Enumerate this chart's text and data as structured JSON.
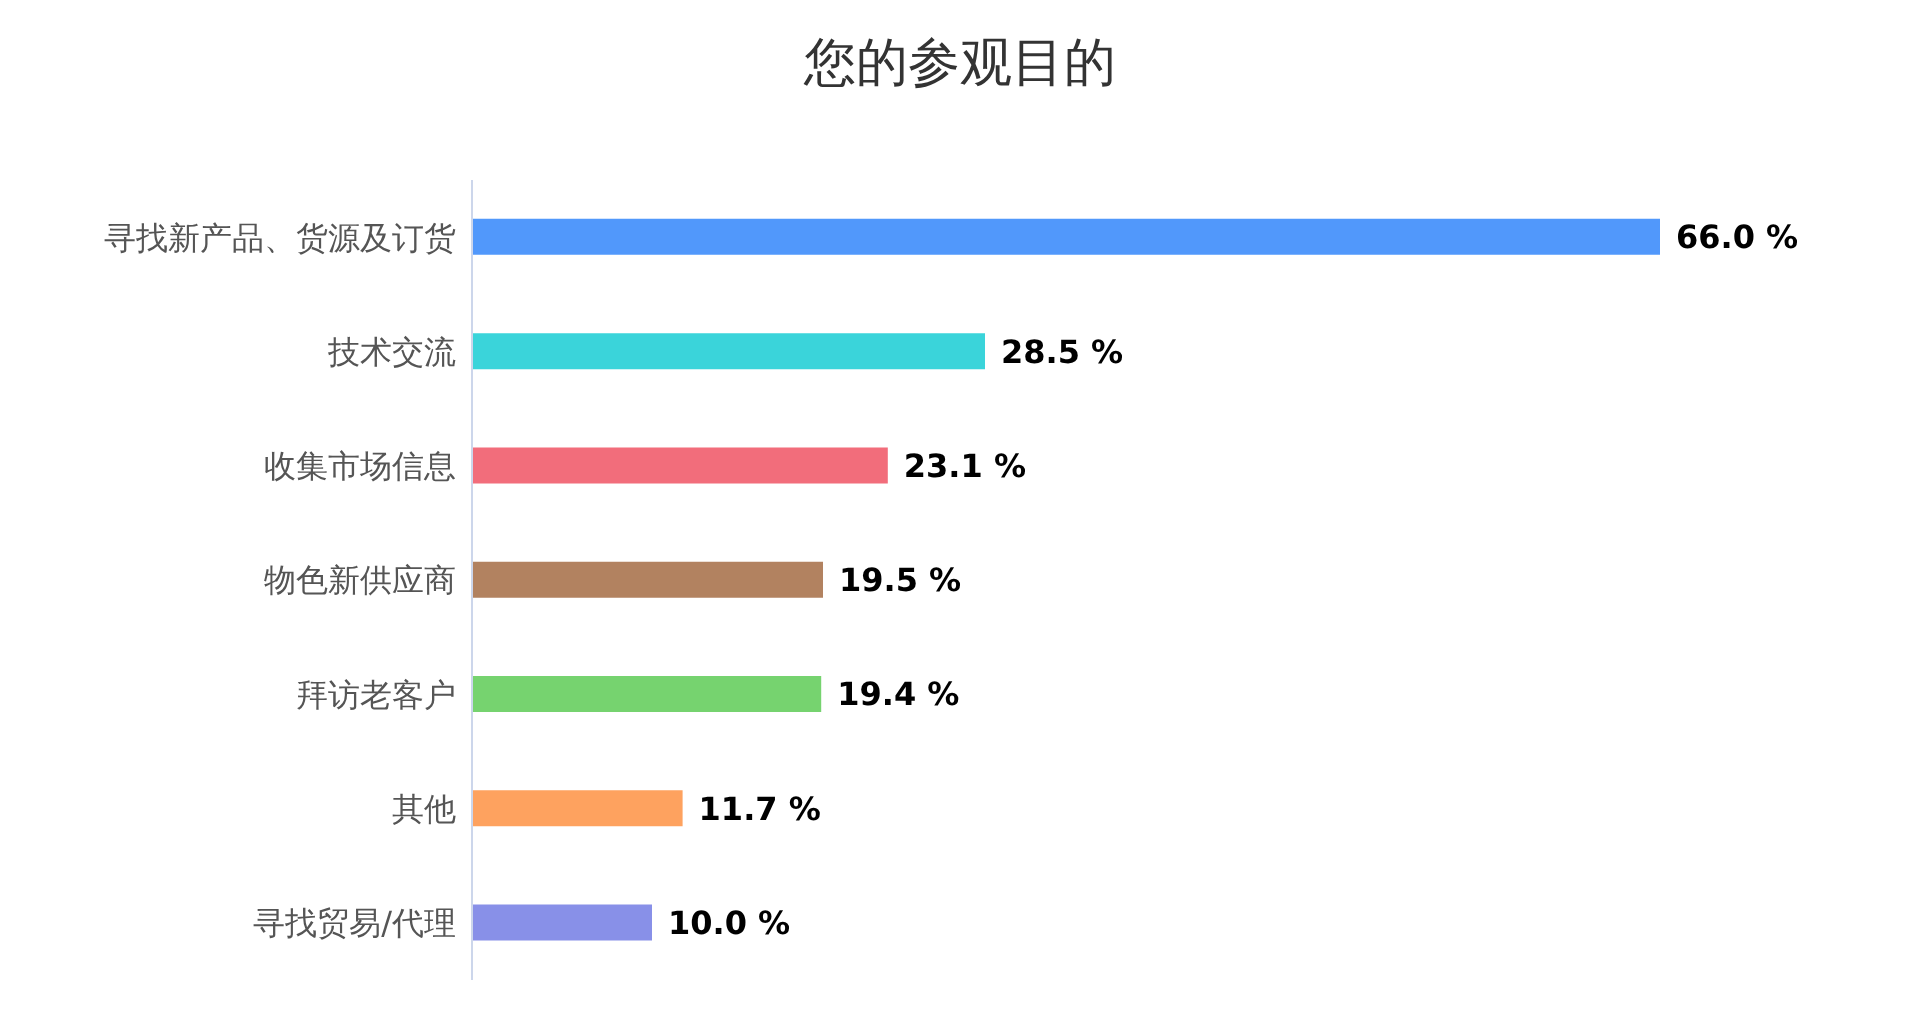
{
  "chart_data": {
    "type": "bar",
    "orientation": "horizontal",
    "title": "您的参观目的",
    "categories": [
      "寻找新产品、货源及订货",
      "技术交流",
      "收集市场信息",
      "物色新供应商",
      "拜访老客户",
      "其他",
      "寻找贸易/代理"
    ],
    "values": [
      66.0,
      28.5,
      23.1,
      19.5,
      19.4,
      11.7,
      10.0
    ],
    "value_labels": [
      "66.0 %",
      "28.5 %",
      "23.1 %",
      "19.5 %",
      "19.4 %",
      "11.7 %",
      "10.0 %"
    ],
    "colors": [
      "#5198fb",
      "#3ad4da",
      "#f26d7b",
      "#b28260",
      "#76d36f",
      "#fea25f",
      "#8890e8"
    ]
  }
}
